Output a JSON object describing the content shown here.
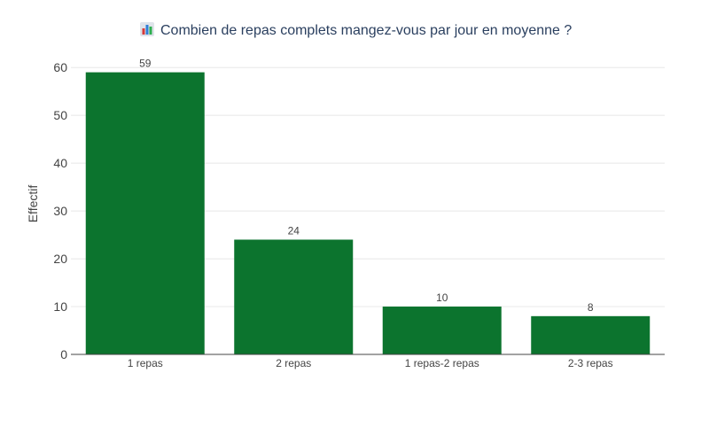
{
  "chart_data": {
    "type": "bar",
    "title": "Combien de repas complets mangez-vous par jour en moyenne ?",
    "title_icon": "bar-chart-emoji-icon",
    "categories": [
      "1 repas",
      "2 repas",
      "1 repas-2 repas",
      "2-3 repas"
    ],
    "values": [
      59,
      24,
      10,
      8
    ],
    "data_labels": [
      "59",
      "24",
      "10",
      "8"
    ],
    "xlabel": "",
    "ylabel": "Effectif",
    "ylim": [
      0,
      63
    ],
    "yticks": [
      0,
      10,
      20,
      30,
      40,
      50,
      60
    ],
    "ytick_labels": [
      "0",
      "10",
      "20",
      "30",
      "40",
      "50",
      "60"
    ],
    "grid": true,
    "bar_color": "#0c742e"
  }
}
